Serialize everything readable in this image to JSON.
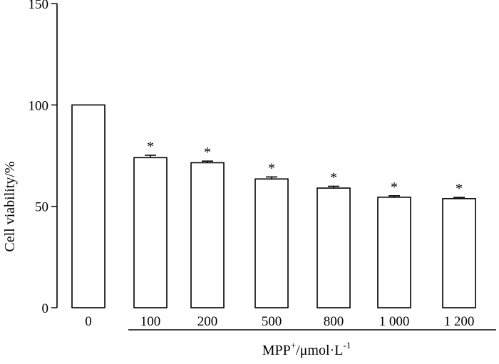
{
  "chart_data": {
    "type": "bar",
    "categories": [
      "0",
      "100",
      "200",
      "500",
      "800",
      "1 000",
      "1 200"
    ],
    "values": [
      100,
      74,
      71.5,
      63.5,
      59,
      54.5,
      53.8
    ],
    "errors": [
      0,
      1.2,
      0.8,
      1.0,
      0.9,
      0.7,
      0.6
    ],
    "significance": [
      "",
      "*",
      "*",
      "*",
      "*",
      "*",
      "*"
    ],
    "ylim": [
      0,
      150
    ],
    "yticks": [
      "0",
      "50",
      "100",
      "150"
    ],
    "yticks_values": [
      0,
      50,
      100,
      150
    ],
    "ylabel": "Cell viability/%",
    "xlabel": {
      "main": "MPP",
      "superscript": "+",
      "unit": "/μmol·L",
      "unit_superscript": "-1"
    },
    "grid": false
  }
}
